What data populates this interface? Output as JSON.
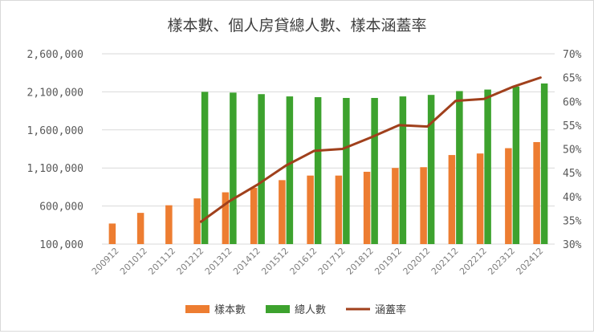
{
  "chart_data": {
    "type": "bar",
    "title": "樣本數、個人房貸總人數、樣本涵蓋率",
    "categories": [
      "200912",
      "201012",
      "201112",
      "201212",
      "201312",
      "201412",
      "201512",
      "201612",
      "201712",
      "201812",
      "201912",
      "202012",
      "202112",
      "202212",
      "202312",
      "202412"
    ],
    "series": [
      {
        "name": "樣本數",
        "type": "bar",
        "axis": "left",
        "color": "#ED7D31",
        "values": [
          370000,
          510000,
          610000,
          700000,
          780000,
          840000,
          940000,
          1000000,
          1000000,
          1050000,
          1100000,
          1110000,
          1270000,
          1290000,
          1360000,
          1440000
        ]
      },
      {
        "name": "總人數",
        "type": "bar",
        "axis": "left",
        "color": "#3DA22E",
        "values": [
          null,
          null,
          null,
          2100000,
          2090000,
          2070000,
          2040000,
          2030000,
          2020000,
          2020000,
          2040000,
          2060000,
          2110000,
          2130000,
          2170000,
          2210000
        ]
      },
      {
        "name": "涵蓋率",
        "type": "line",
        "axis": "right",
        "color": "#A0401C",
        "values": [
          null,
          null,
          null,
          34.7,
          39.0,
          42.5,
          46.5,
          49.6,
          50.0,
          52.4,
          55.0,
          54.7,
          60.1,
          60.5,
          63.0,
          65.0
        ]
      }
    ],
    "y_left": {
      "min": 100000,
      "max": 2600000,
      "ticks": [
        "100,000",
        "600,000",
        "1,100,000",
        "1,600,000",
        "2,100,000",
        "2,600,000"
      ],
      "tick_values": [
        100000,
        600000,
        1100000,
        1600000,
        2100000,
        2600000
      ]
    },
    "y_right": {
      "min": 30,
      "max": 70,
      "ticks": [
        "30%",
        "35%",
        "40%",
        "45%",
        "50%",
        "55%",
        "60%",
        "65%",
        "70%"
      ],
      "tick_values": [
        30,
        35,
        40,
        45,
        50,
        55,
        60,
        65,
        70
      ]
    },
    "grid": true,
    "legend_position": "bottom"
  }
}
